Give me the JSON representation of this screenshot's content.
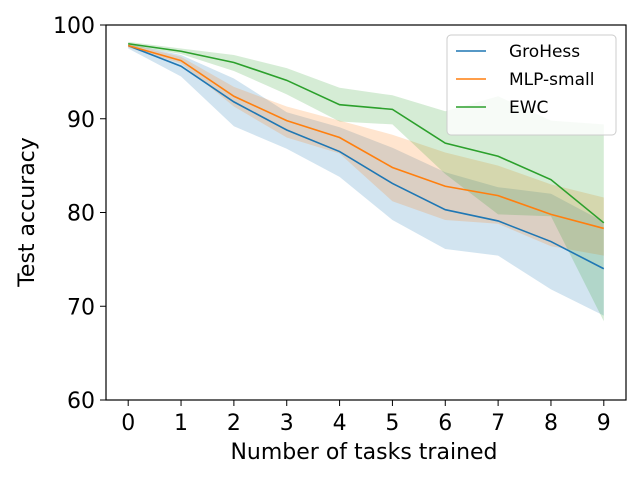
{
  "chart_data": {
    "type": "line",
    "title": "",
    "xlabel": "Number of tasks trained",
    "ylabel": "Test accuracy",
    "x": [
      0,
      1,
      2,
      3,
      4,
      5,
      6,
      7,
      8,
      9
    ],
    "xlim": [
      -0.42,
      9.42
    ],
    "ylim": [
      60,
      100
    ],
    "xticks": [
      "0",
      "1",
      "2",
      "3",
      "4",
      "5",
      "6",
      "7",
      "8",
      "9"
    ],
    "yticks": [
      60,
      70,
      80,
      90,
      100
    ],
    "grid": false,
    "legend_position": "top-right",
    "series": [
      {
        "name": "GroHess",
        "color": "#1f77b4",
        "values": [
          97.8,
          95.6,
          91.8,
          88.8,
          86.5,
          83.1,
          80.3,
          79.1,
          76.9,
          74.0
        ],
        "lower": [
          97.5,
          94.5,
          89.2,
          86.8,
          83.8,
          79.2,
          76.1,
          75.4,
          71.8,
          69.0
        ],
        "upper": [
          98.0,
          96.8,
          94.3,
          90.7,
          89.1,
          86.9,
          84.3,
          82.7,
          82.0,
          79.0
        ]
      },
      {
        "name": "MLP-small",
        "color": "#ff7f0e",
        "values": [
          97.8,
          96.2,
          92.4,
          89.8,
          88.0,
          84.8,
          82.8,
          81.8,
          79.8,
          78.3
        ],
        "lower": [
          97.6,
          95.9,
          91.3,
          88.0,
          86.3,
          81.2,
          79.2,
          78.8,
          76.4,
          75.4
        ],
        "upper": [
          98.0,
          96.6,
          93.4,
          91.3,
          89.8,
          88.3,
          86.4,
          85.0,
          83.0,
          81.6
        ]
      },
      {
        "name": "EWC",
        "color": "#2ca02c",
        "values": [
          98.0,
          97.2,
          96.0,
          94.1,
          91.5,
          91.0,
          87.4,
          86.0,
          83.5,
          78.9
        ],
        "lower": [
          97.8,
          96.9,
          95.1,
          92.6,
          89.7,
          89.4,
          84.1,
          79.8,
          79.6,
          68.4
        ],
        "upper": [
          98.2,
          97.5,
          96.8,
          95.4,
          93.3,
          92.5,
          90.8,
          92.4,
          89.8,
          89.4
        ]
      }
    ]
  }
}
